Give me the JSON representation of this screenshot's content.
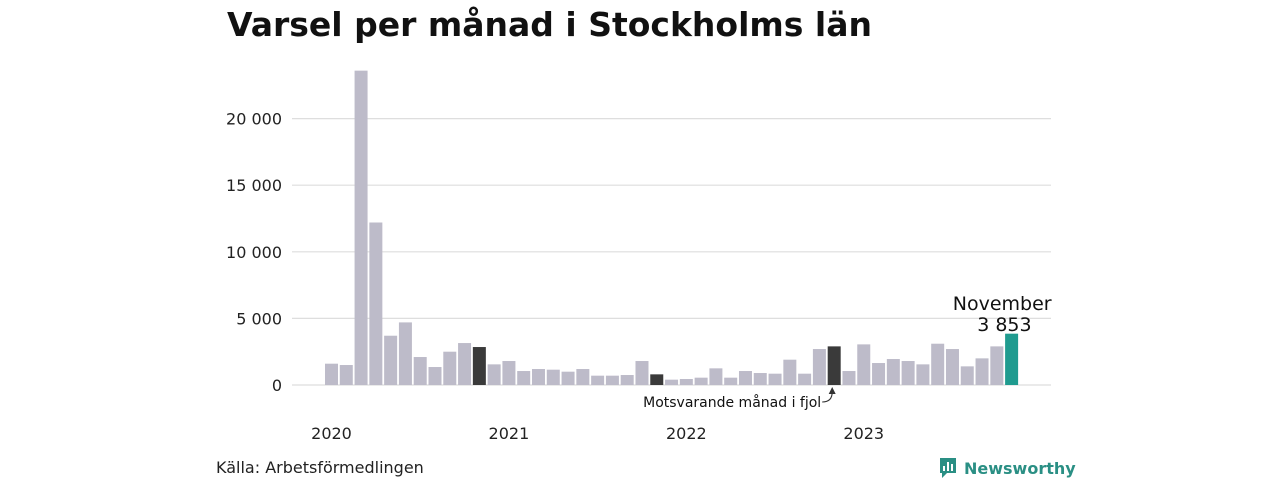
{
  "title": "Varsel per månad i Stockholms län",
  "source": "Källa: Arbetsförmedlingen",
  "brand": "Newsworthy",
  "colors": {
    "bar": "#bdbbc9",
    "same_month_last_year": "#3a3a3a",
    "latest": "#1f9b8f",
    "grid": "#dedede",
    "brand": "#2a8f84"
  },
  "chart_data": {
    "type": "bar",
    "title": "Varsel per månad i Stockholms län",
    "xlabel": "",
    "ylabel": "",
    "ylim": [
      0,
      25000
    ],
    "yticks": [
      0,
      5000,
      10000,
      15000,
      20000
    ],
    "ytick_labels": [
      "0",
      "5 000",
      "10 000",
      "15 000",
      "20 000"
    ],
    "grid": true,
    "year_labels": [
      "2020",
      "2021",
      "2022",
      "2023"
    ],
    "categories": [
      "2020-01",
      "2020-02",
      "2020-03",
      "2020-04",
      "2020-05",
      "2020-06",
      "2020-07",
      "2020-08",
      "2020-09",
      "2020-10",
      "2020-11",
      "2020-12",
      "2021-01",
      "2021-02",
      "2021-03",
      "2021-04",
      "2021-05",
      "2021-06",
      "2021-07",
      "2021-08",
      "2021-09",
      "2021-10",
      "2021-11",
      "2021-12",
      "2022-01",
      "2022-02",
      "2022-03",
      "2022-04",
      "2022-05",
      "2022-06",
      "2022-07",
      "2022-08",
      "2022-09",
      "2022-10",
      "2022-11",
      "2022-12",
      "2023-01",
      "2023-02",
      "2023-03",
      "2023-04",
      "2023-05",
      "2023-06",
      "2023-07",
      "2023-08",
      "2023-09",
      "2023-10",
      "2023-11"
    ],
    "values": [
      1600,
      1500,
      23600,
      12200,
      3700,
      4700,
      2100,
      1350,
      2500,
      3150,
      2850,
      1550,
      1800,
      1050,
      1200,
      1150,
      1000,
      1200,
      700,
      700,
      750,
      1800,
      800,
      400,
      450,
      550,
      1250,
      550,
      1050,
      900,
      850,
      1900,
      850,
      2700,
      2900,
      1050,
      3050,
      1650,
      1950,
      1800,
      1550,
      3100,
      2700,
      1400,
      2000,
      2900,
      3853
    ],
    "highlight_same_month_last_year": [
      "2020-11",
      "2021-11",
      "2022-11"
    ],
    "highlight_latest": "2023-11",
    "annotations": {
      "latest_month": "November",
      "latest_value": "3 853",
      "last_year_note": "Motsvarande månad i fjol"
    }
  }
}
